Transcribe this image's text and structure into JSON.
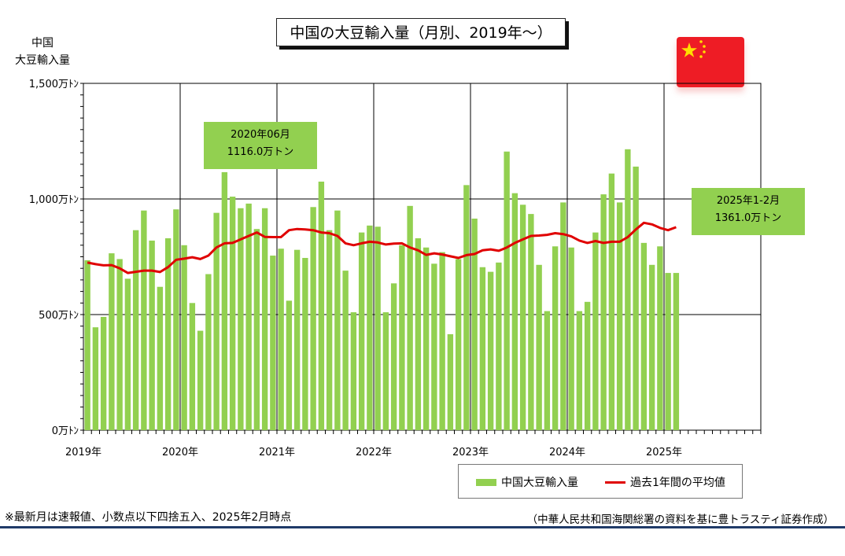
{
  "chart_data": {
    "type": "bar",
    "title": "中国の大豆輸入量（月別、2019年～）",
    "ylabel": "中国\n大豆輸入量",
    "ylim": [
      0,
      1500
    ],
    "y_ticks": [
      "0万ﾄﾝ",
      "500万ﾄﾝ",
      "1,000万ﾄﾝ",
      "1,500万ﾄﾝ"
    ],
    "y_tick_values": [
      0,
      500,
      1000,
      1500
    ],
    "x_tick_labels": [
      "2019年",
      "2020年",
      "2021年",
      "2022年",
      "2023年",
      "2024年",
      "2025年"
    ],
    "x_months_total": 84,
    "grid": true,
    "legend_position": "bottom-right",
    "series": [
      {
        "name": "中国大豆輸入量",
        "kind": "bar",
        "color": "#92d050",
        "values": [
          735,
          445,
          490,
          765,
          740,
          655,
          865,
          950,
          820,
          620,
          830,
          955,
          800,
          550,
          430,
          675,
          940,
          1116,
          1010,
          960,
          980,
          870,
          960,
          755,
          785,
          560,
          780,
          745,
          965,
          1075,
          865,
          950,
          690,
          510,
          855,
          885,
          880,
          510,
          635,
          800,
          970,
          830,
          790,
          720,
          770,
          415,
          740,
          1060,
          915,
          705,
          685,
          725,
          1205,
          1025,
          975,
          935,
          715,
          515,
          795,
          985,
          790,
          515,
          555,
          855,
          1020,
          1110,
          985,
          1215,
          1140,
          810,
          715,
          795,
          680,
          680
        ]
      },
      {
        "name": "過去1年間の平均値",
        "kind": "line",
        "color": "#e00000",
        "values": [
          725,
          718,
          713,
          714,
          700,
          680,
          685,
          690,
          690,
          684,
          705,
          737,
          742,
          748,
          740,
          755,
          790,
          808,
          810,
          825,
          840,
          855,
          836,
          835,
          835,
          865,
          870,
          868,
          865,
          855,
          852,
          840,
          808,
          800,
          808,
          815,
          812,
          803,
          807,
          808,
          790,
          778,
          758,
          765,
          760,
          752,
          745,
          757,
          762,
          778,
          782,
          776,
          790,
          810,
          825,
          840,
          842,
          845,
          852,
          848,
          838,
          820,
          810,
          818,
          810,
          815,
          815,
          835,
          868,
          897,
          890,
          875,
          865,
          878
        ]
      }
    ],
    "annotations": [
      {
        "line1": "2020年06月",
        "line2": "1116.0万トン"
      },
      {
        "line1": "2025年1-2月",
        "line2": "1361.0万トン"
      }
    ]
  },
  "legend": {
    "bar_label": "中国大豆輸入量",
    "line_label": "過去1年間の平均値"
  },
  "footnote": "※最新月は速報値、小数点以下四捨五入、2025年2月時点",
  "source": "（中華人民共和国海関総署の資料を基に豊トラスティ証券作成）",
  "colors": {
    "bar": "#92d050",
    "line": "#e00000",
    "flag": "#ee1c25",
    "star": "#ffde00",
    "rule": "#1f3a68"
  },
  "icons": {
    "flag": "china-flag-icon"
  }
}
